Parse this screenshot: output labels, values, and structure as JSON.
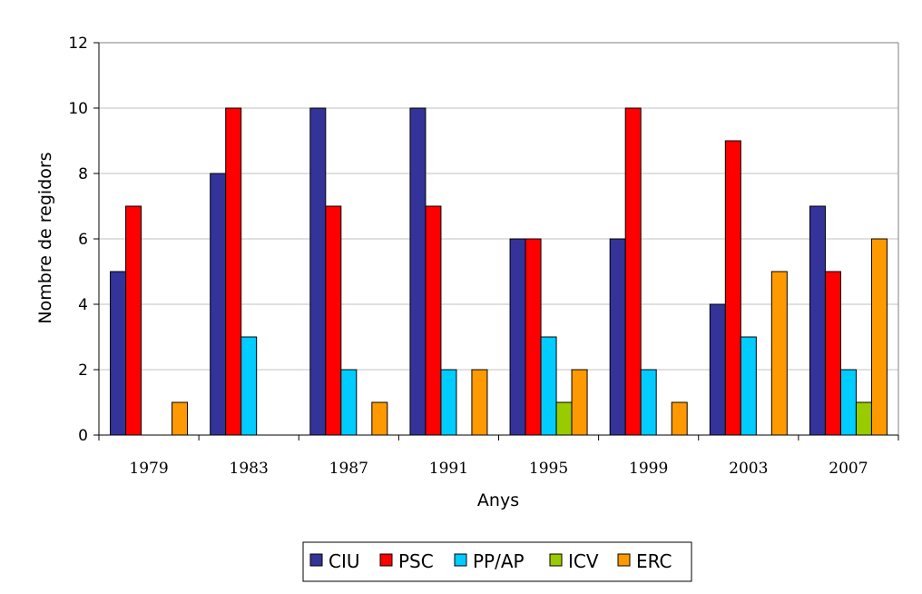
{
  "chart_data": {
    "type": "bar",
    "title": "",
    "xlabel": "Anys",
    "ylabel": "Nombre de regidors",
    "ylim": [
      0,
      12
    ],
    "yticks": [
      0,
      2,
      4,
      6,
      8,
      10,
      12
    ],
    "grid": true,
    "legend": "bottom",
    "categories": [
      "1979",
      "1983",
      "1987",
      "1991",
      "1995",
      "1999",
      "2003",
      "2007"
    ],
    "series": [
      {
        "name": "CIU",
        "color": "#333399",
        "values": [
          5,
          8,
          10,
          10,
          6,
          6,
          4,
          7
        ]
      },
      {
        "name": "PSC",
        "color": "#ff0000",
        "values": [
          7,
          10,
          7,
          7,
          6,
          10,
          9,
          5
        ]
      },
      {
        "name": "PP/AP",
        "color": "#00ccff",
        "values": [
          0,
          3,
          2,
          2,
          3,
          2,
          3,
          2
        ]
      },
      {
        "name": "ICV",
        "color": "#99cc00",
        "values": [
          0,
          0,
          0,
          0,
          1,
          0,
          0,
          1
        ]
      },
      {
        "name": "ERC",
        "color": "#ff9900",
        "values": [
          1,
          0,
          1,
          2,
          2,
          1,
          5,
          6
        ]
      }
    ]
  }
}
